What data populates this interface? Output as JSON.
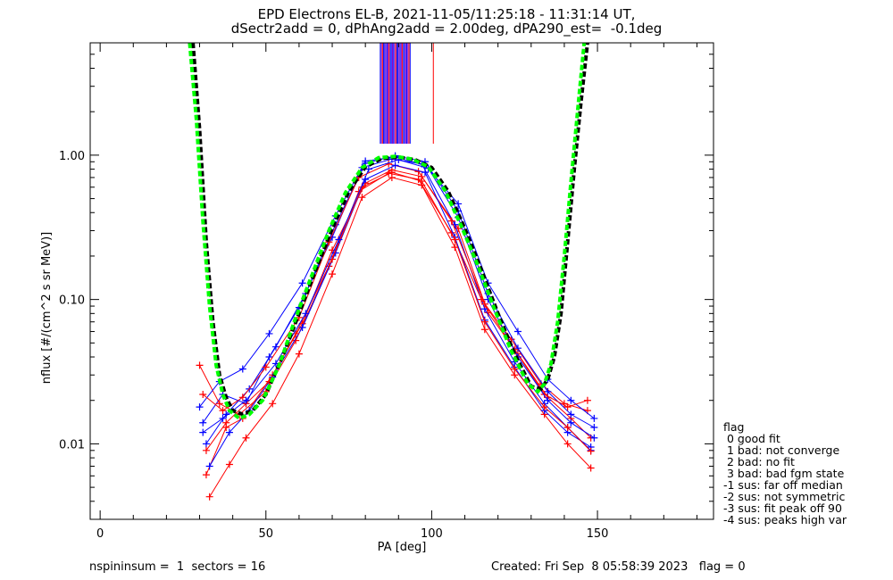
{
  "title_line1": "EPD Electrons EL-B, 2021-11-05/11:25:18 - 11:31:14 UT,",
  "title_line2": "dSectr2add = 0, dPhAng2add = 2.00deg, dPA290_est=  -0.1deg",
  "legend": {
    "title": "flag",
    "items": [
      " 0 good fit",
      " 1 bad: not converge",
      " 2 bad: no fit",
      " 3 bad: bad fgm state",
      "-1 sus: far off median",
      "-2 sus: not symmetric",
      "-3 sus: fit peak off 90",
      "-4 sus: peaks high var"
    ]
  },
  "footer": {
    "left": "nspininsum =  1  sectors = 16",
    "right": "Created: Fri Sep  8 05:58:39 2023   flag = 0"
  },
  "colors": {
    "red": "#ff0000",
    "blue": "#0000ff",
    "green": "#00ff00",
    "black": "#000000",
    "purple": "#8a00cc"
  },
  "chart_data": {
    "type": "line",
    "xlabel": "PA [deg]",
    "ylabel": "nflux [#/(cm^2 s sr MeV)]",
    "xlim": [
      -3,
      185
    ],
    "ylim": [
      0.003,
      6.0
    ],
    "yscale": "log",
    "xticks": [
      0,
      50,
      100,
      150
    ],
    "xtick_labels": [
      "0",
      "50",
      "100",
      "150"
    ],
    "yticks": [
      0.01,
      0.1,
      1.0
    ],
    "ytick_labels": [
      "0.01",
      "0.10",
      "1.00"
    ],
    "series": [
      {
        "color": "red",
        "x": [
          32,
          38,
          43,
          52,
          61,
          70,
          80,
          88,
          97,
          108,
          117,
          126,
          135,
          142,
          148
        ],
        "y": [
          0.0061,
          0.013,
          0.015,
          0.03,
          0.068,
          0.22,
          0.64,
          0.79,
          0.71,
          0.31,
          0.081,
          0.042,
          0.021,
          0.015,
          0.011
        ]
      },
      {
        "color": "blue",
        "x": [
          31,
          37,
          44,
          51,
          60,
          70,
          79,
          88,
          97,
          107,
          116,
          125,
          134,
          141,
          148
        ],
        "y": [
          0.014,
          0.022,
          0.019,
          0.04,
          0.088,
          0.27,
          0.82,
          0.94,
          0.87,
          0.33,
          0.086,
          0.037,
          0.019,
          0.013,
          0.009
        ]
      },
      {
        "color": "red",
        "x": [
          30,
          36,
          42,
          50,
          59,
          69,
          78,
          87,
          96,
          106,
          115,
          124,
          133,
          140,
          147
        ],
        "y": [
          0.035,
          0.019,
          0.016,
          0.023,
          0.052,
          0.17,
          0.56,
          0.75,
          0.68,
          0.29,
          0.1,
          0.053,
          0.026,
          0.019,
          0.017
        ]
      },
      {
        "color": "blue",
        "x": [
          32,
          38,
          45,
          53,
          62,
          71,
          80,
          89,
          98,
          108,
          117,
          126,
          135,
          142,
          149
        ],
        "y": [
          0.01,
          0.016,
          0.024,
          0.047,
          0.11,
          0.33,
          0.88,
          0.99,
          0.9,
          0.41,
          0.11,
          0.046,
          0.023,
          0.016,
          0.013
        ]
      },
      {
        "color": "red",
        "x": [
          33,
          39,
          44,
          52,
          60,
          70,
          79,
          88,
          97,
          107,
          116,
          125,
          134,
          141,
          148
        ],
        "y": [
          0.0043,
          0.0072,
          0.011,
          0.019,
          0.042,
          0.15,
          0.51,
          0.7,
          0.62,
          0.23,
          0.062,
          0.03,
          0.016,
          0.01,
          0.0068
        ]
      },
      {
        "color": "blue",
        "x": [
          30,
          36,
          43,
          51,
          61,
          71,
          80,
          89,
          98,
          108,
          117,
          126,
          135,
          142,
          149
        ],
        "y": [
          0.018,
          0.027,
          0.033,
          0.058,
          0.13,
          0.38,
          0.91,
          0.97,
          0.85,
          0.46,
          0.13,
          0.06,
          0.028,
          0.02,
          0.015
        ]
      },
      {
        "color": "red",
        "x": [
          31,
          37,
          43,
          50,
          60,
          69,
          78,
          87,
          96,
          106,
          116,
          125,
          134,
          141,
          147
        ],
        "y": [
          0.022,
          0.017,
          0.021,
          0.034,
          0.075,
          0.25,
          0.7,
          0.87,
          0.77,
          0.35,
          0.093,
          0.045,
          0.022,
          0.018,
          0.02
        ]
      },
      {
        "color": "blue",
        "x": [
          33,
          39,
          45,
          52,
          61,
          71,
          80,
          89,
          98,
          107,
          116,
          125,
          134,
          141,
          148
        ],
        "y": [
          0.007,
          0.012,
          0.017,
          0.029,
          0.064,
          0.21,
          0.68,
          0.85,
          0.76,
          0.27,
          0.072,
          0.034,
          0.017,
          0.012,
          0.0095
        ]
      },
      {
        "color": "red",
        "x": [
          32,
          38,
          44,
          51,
          59,
          70,
          79,
          88,
          97,
          107,
          116,
          125,
          134,
          141,
          148
        ],
        "y": [
          0.009,
          0.014,
          0.019,
          0.027,
          0.058,
          0.19,
          0.6,
          0.76,
          0.66,
          0.26,
          0.07,
          0.033,
          0.018,
          0.013,
          0.0089
        ]
      },
      {
        "color": "blue",
        "x": [
          31,
          37,
          44,
          53,
          62,
          72,
          81,
          90,
          99,
          108,
          117,
          126,
          135,
          142,
          149
        ],
        "y": [
          0.012,
          0.015,
          0.02,
          0.036,
          0.08,
          0.26,
          0.8,
          0.93,
          0.81,
          0.37,
          0.1,
          0.04,
          0.02,
          0.014,
          0.011
        ]
      }
    ],
    "fit_black": {
      "x": [
        28,
        30,
        32,
        34,
        36,
        38,
        40,
        43,
        46,
        50,
        55,
        60,
        65,
        70,
        75,
        80,
        85,
        90,
        95,
        100,
        105,
        110,
        115,
        120,
        125,
        130,
        133,
        135,
        137,
        139,
        141,
        143,
        145,
        147
      ],
      "y": [
        6.0,
        1.5,
        0.25,
        0.07,
        0.03,
        0.021,
        0.017,
        0.016,
        0.017,
        0.022,
        0.04,
        0.08,
        0.16,
        0.31,
        0.56,
        0.83,
        0.95,
        0.97,
        0.93,
        0.82,
        0.56,
        0.31,
        0.16,
        0.08,
        0.042,
        0.025,
        0.024,
        0.028,
        0.04,
        0.08,
        0.25,
        0.8,
        2.3,
        6.0
      ]
    },
    "fit_green": {
      "x": [
        27,
        29,
        31,
        33,
        35,
        37,
        39,
        42,
        45,
        49,
        54,
        59,
        64,
        69,
        74,
        79,
        84,
        89,
        94,
        99,
        104,
        109,
        114,
        119,
        124,
        129,
        132,
        134,
        136,
        138,
        140,
        142,
        144,
        146
      ],
      "y": [
        6.0,
        1.8,
        0.35,
        0.09,
        0.035,
        0.022,
        0.017,
        0.015,
        0.016,
        0.02,
        0.035,
        0.075,
        0.15,
        0.3,
        0.55,
        0.82,
        0.96,
        0.98,
        0.94,
        0.83,
        0.57,
        0.32,
        0.17,
        0.085,
        0.044,
        0.026,
        0.023,
        0.026,
        0.036,
        0.07,
        0.2,
        0.65,
        2.0,
        6.0
      ]
    },
    "vertical_lines": {
      "x_start": 84.5,
      "x_end": 93.5,
      "count": 28,
      "y_bottom": 1.2,
      "extra_red_x": 100.5
    }
  }
}
